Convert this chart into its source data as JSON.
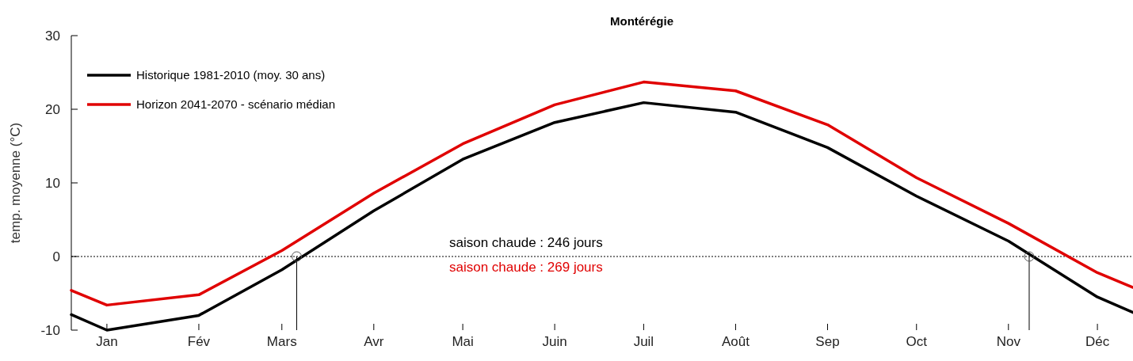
{
  "chart_data": {
    "type": "line",
    "title": "Montérégie",
    "ylabel": "temp. moyenne (°C)",
    "x": [
      "--01-03",
      "--01-15",
      "--02-15",
      "--03-15",
      "--04-15",
      "--05-15",
      "--06-15",
      "--07-15",
      "--08-15",
      "--09-15",
      "--10-15",
      "--11-15",
      "--12-15",
      "--12-27"
    ],
    "xlim": [
      "--01-03",
      "--12-27"
    ],
    "xticks": [
      {
        "value": "--01-15",
        "label": "Jan"
      },
      {
        "value": "--02-15",
        "label": "Fév"
      },
      {
        "value": "--03-15",
        "label": "Mars"
      },
      {
        "value": "--04-15",
        "label": "Avr"
      },
      {
        "value": "--05-15",
        "label": "Mai"
      },
      {
        "value": "--06-15",
        "label": "Juin"
      },
      {
        "value": "--07-15",
        "label": "Juil"
      },
      {
        "value": "--08-15",
        "label": "Août"
      },
      {
        "value": "--09-15",
        "label": "Sep"
      },
      {
        "value": "--10-15",
        "label": "Oct"
      },
      {
        "value": "--11-15",
        "label": "Nov"
      },
      {
        "value": "--12-15",
        "label": "Déc"
      }
    ],
    "ylim": [
      -10,
      30
    ],
    "yticks": [
      -10,
      0,
      10,
      20,
      30
    ],
    "series": [
      {
        "name": "Historique 1981-2010 (moy. 30 ans)",
        "color": "#000000",
        "values": [
          -7.9,
          -10,
          -8,
          -1.8,
          6.2,
          13.2,
          18.2,
          20.9,
          19.6,
          14.8,
          8.2,
          2.1,
          -5.5,
          -7.6
        ]
      },
      {
        "name": "Horizon 2041-2070 - scénario médian",
        "color": "#e00000",
        "values": [
          -4.6,
          -6.6,
          -5.2,
          0.8,
          8.6,
          15.3,
          20.6,
          23.7,
          22.5,
          17.9,
          10.7,
          4.5,
          -2.2,
          -4.2
        ]
      },
      {
        "type": "scatter",
        "color": "#555555",
        "marker": "circle",
        "x": [
          "--03-20",
          "--11-22"
        ],
        "values": [
          0,
          0
        ]
      }
    ],
    "ref_lines": [
      {
        "axis": "y",
        "value": 0,
        "line_style": "dotted",
        "color": "#000000"
      },
      {
        "axis": "x",
        "value": "--03-20",
        "color": "#000000"
      },
      {
        "axis": "x",
        "value": "--11-22",
        "color": "#000000"
      }
    ],
    "annotations": [
      "saison chaude : 246 jours",
      "saison chaude : 269 jours"
    ],
    "legend": "top left",
    "grid": false,
    "marker": "none",
    "line_style": "solid"
  }
}
